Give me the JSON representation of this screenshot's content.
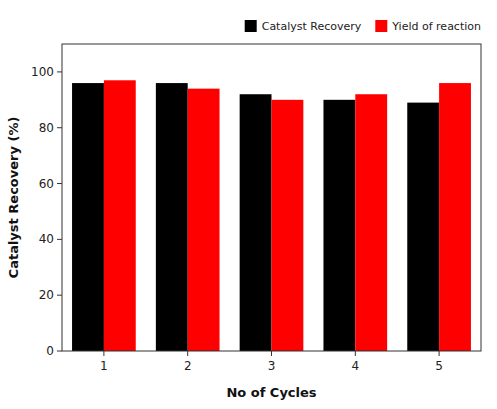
{
  "chart_data": {
    "type": "bar",
    "categories": [
      1,
      2,
      3,
      4,
      5
    ],
    "series": [
      {
        "name": "Catalyst Recovery",
        "color": "#000000",
        "values": [
          96,
          96,
          92,
          90,
          89
        ]
      },
      {
        "name": "Yield of reaction",
        "color": "#ff0000",
        "values": [
          97,
          94,
          90,
          92,
          96
        ]
      }
    ],
    "xlabel": "No of Cycles",
    "ylabel": "Catalyst Recovery (%)",
    "ylim": [
      0,
      110
    ],
    "yticks": [
      0,
      20,
      40,
      60,
      80,
      100
    ],
    "legend": "upper right",
    "grid": false
  }
}
